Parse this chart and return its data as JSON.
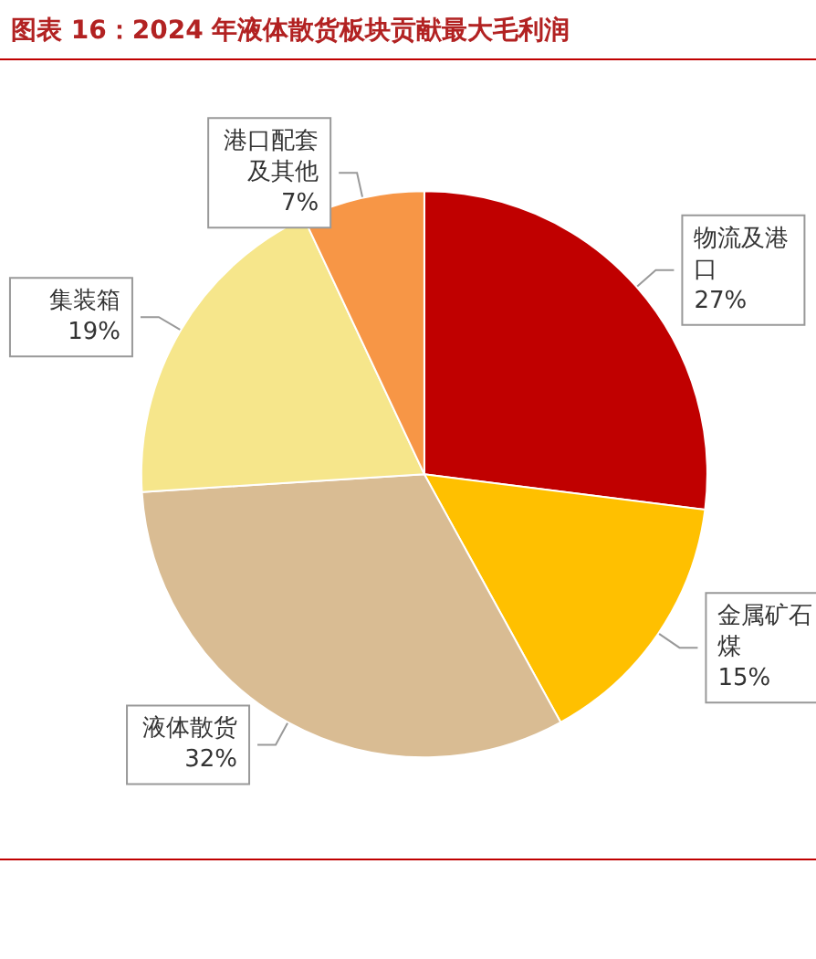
{
  "chart_data": {
    "type": "pie",
    "title": "图表 16：2024 年液体散货板块贡献最大毛利润",
    "categories": [
      "物流及港口",
      "金属矿石煤",
      "液体散货",
      "集装箱",
      "港口配套及其他"
    ],
    "values": [
      27,
      15,
      32,
      19,
      7
    ],
    "value_labels": [
      "27%",
      "15%",
      "32%",
      "19%",
      "7%"
    ],
    "colors": [
      "#c00000",
      "#ffc000",
      "#d9bc93",
      "#f6e68b",
      "#f79646"
    ],
    "legend": false
  }
}
